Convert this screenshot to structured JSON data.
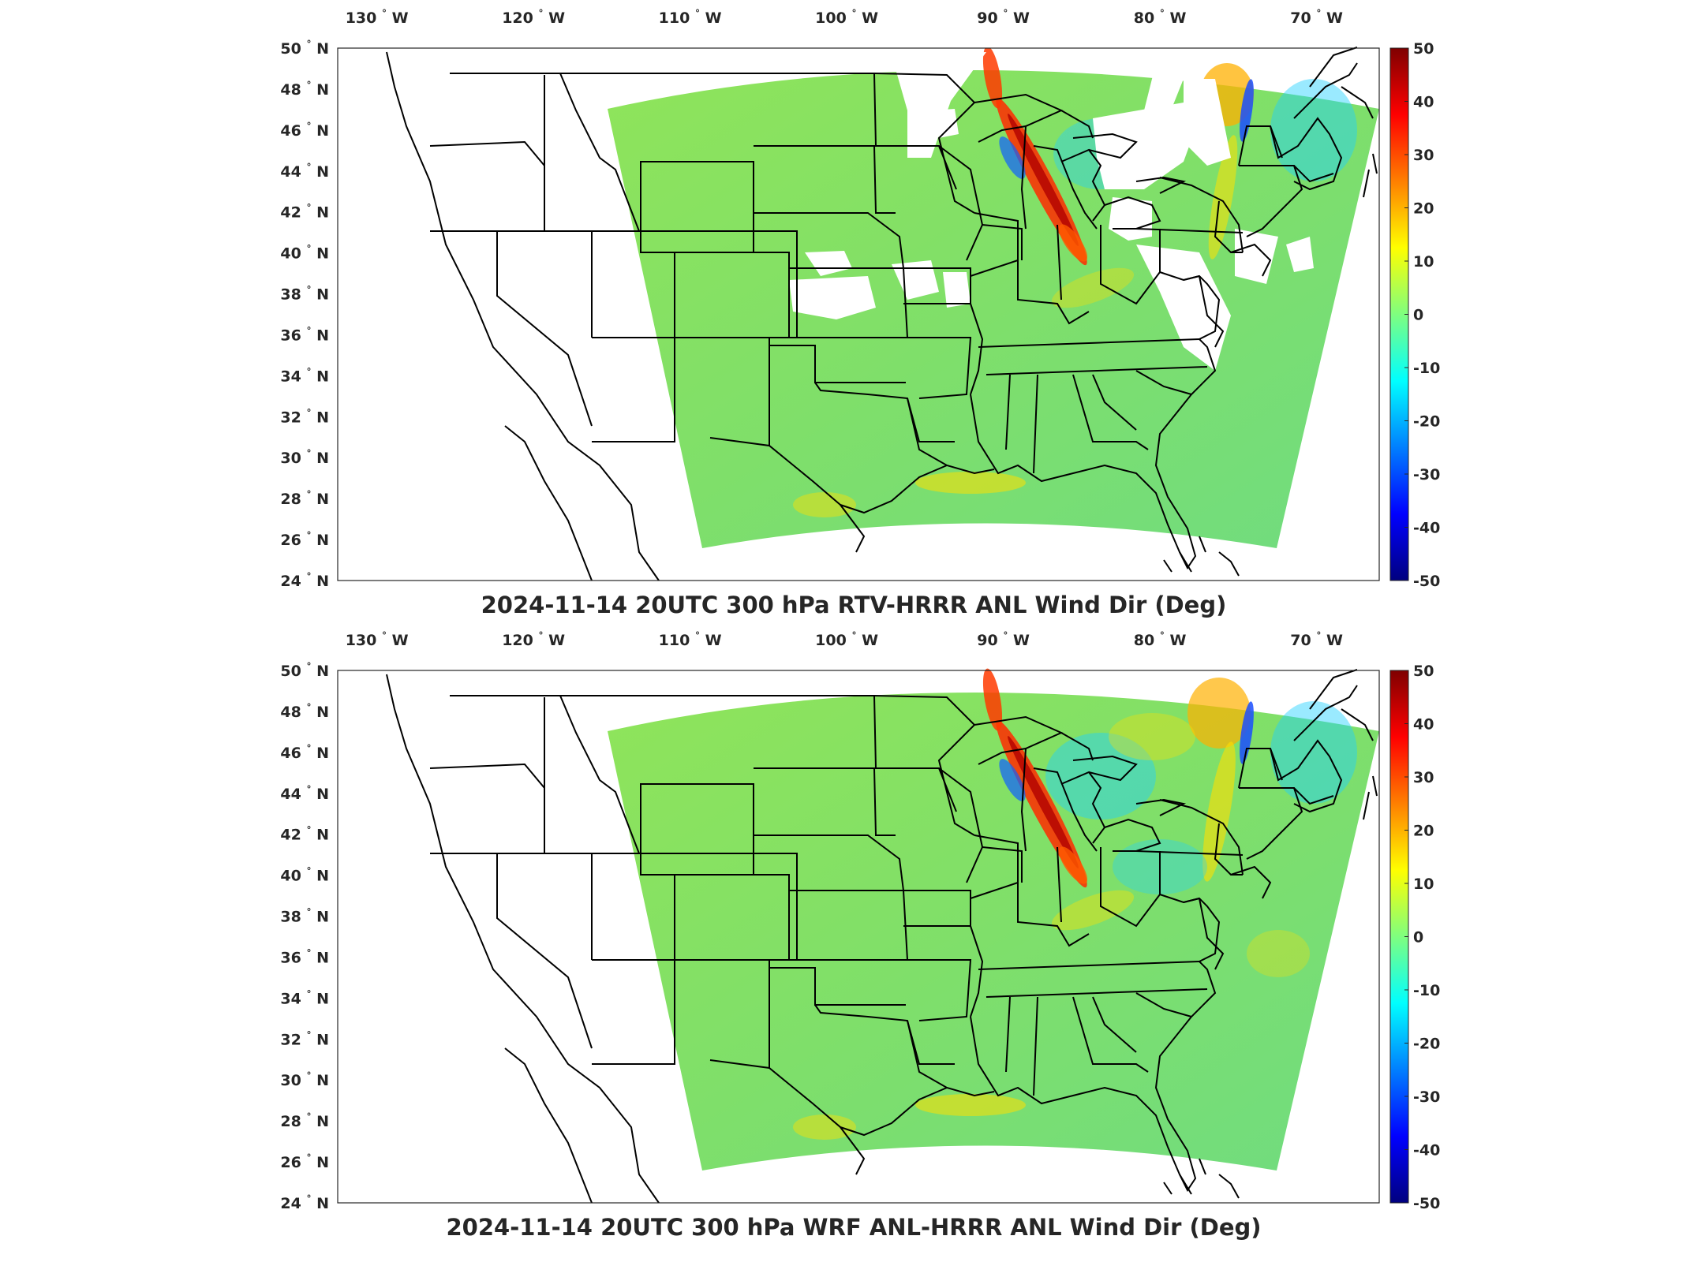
{
  "colormap": "jet",
  "colors": {
    "jet": [
      "#00007f",
      "#0000ff",
      "#007fff",
      "#00ffff",
      "#7fff7f",
      "#ffff00",
      "#ff7f00",
      "#ff0000",
      "#7f0000"
    ],
    "field_base": "#86e25e",
    "state_lines": "#000000",
    "axes_frame": "#262626"
  },
  "panels": [
    {
      "title": "2024-11-14 20UTC 300 hPa RTV-HRRR ANL Wind Dir (Deg)",
      "lon_ticks": [
        {
          "v": -130,
          "label": "130"
        },
        {
          "v": -120,
          "label": "120"
        },
        {
          "v": -110,
          "label": "110"
        },
        {
          "v": -100,
          "label": "100"
        },
        {
          "v": -90,
          "label": "90"
        },
        {
          "v": -80,
          "label": "80"
        },
        {
          "v": -70,
          "label": "70"
        }
      ],
      "lon_hemisphere": "W",
      "lat_ticks": [
        {
          "v": 50,
          "label": "50"
        },
        {
          "v": 48,
          "label": "48"
        },
        {
          "v": 46,
          "label": "46"
        },
        {
          "v": 44,
          "label": "44"
        },
        {
          "v": 42,
          "label": "42"
        },
        {
          "v": 40,
          "label": "40"
        },
        {
          "v": 38,
          "label": "38"
        },
        {
          "v": 36,
          "label": "36"
        },
        {
          "v": 34,
          "label": "34"
        },
        {
          "v": 32,
          "label": "32"
        },
        {
          "v": 30,
          "label": "30"
        },
        {
          "v": 28,
          "label": "28"
        },
        {
          "v": 26,
          "label": "26"
        },
        {
          "v": 24,
          "label": "24"
        }
      ],
      "lat_hemisphere": "N",
      "colorbar_ticks": [
        "50",
        "40",
        "30",
        "20",
        "10",
        "0",
        "-10",
        "-20",
        "-30",
        "-40",
        "-50"
      ],
      "has_missing_data": true
    },
    {
      "title": "2024-11-14 20UTC 300 hPa WRF ANL-HRRR ANL Wind Dir (Deg)",
      "lon_ticks": [
        {
          "v": -130,
          "label": "130"
        },
        {
          "v": -120,
          "label": "120"
        },
        {
          "v": -110,
          "label": "110"
        },
        {
          "v": -100,
          "label": "100"
        },
        {
          "v": -90,
          "label": "90"
        },
        {
          "v": -80,
          "label": "80"
        },
        {
          "v": -70,
          "label": "70"
        }
      ],
      "lon_hemisphere": "W",
      "lat_ticks": [
        {
          "v": 50,
          "label": "50"
        },
        {
          "v": 48,
          "label": "48"
        },
        {
          "v": 46,
          "label": "46"
        },
        {
          "v": 44,
          "label": "44"
        },
        {
          "v": 42,
          "label": "42"
        },
        {
          "v": 40,
          "label": "40"
        },
        {
          "v": 38,
          "label": "38"
        },
        {
          "v": 36,
          "label": "36"
        },
        {
          "v": 34,
          "label": "34"
        },
        {
          "v": 32,
          "label": "32"
        },
        {
          "v": 30,
          "label": "30"
        },
        {
          "v": 28,
          "label": "28"
        },
        {
          "v": 26,
          "label": "26"
        },
        {
          "v": 24,
          "label": "24"
        }
      ],
      "lat_hemisphere": "N",
      "colorbar_ticks": [
        "50",
        "40",
        "30",
        "20",
        "10",
        "0",
        "-10",
        "-20",
        "-30",
        "-40",
        "-50"
      ],
      "has_missing_data": false
    }
  ]
}
